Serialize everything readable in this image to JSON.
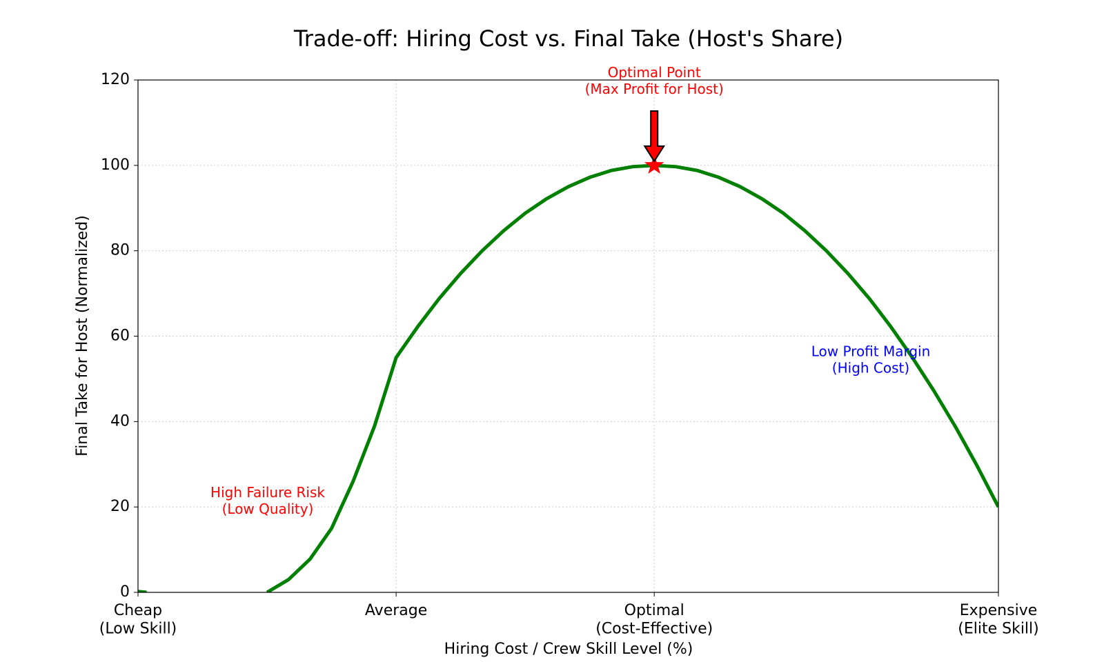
{
  "chart_data": {
    "type": "line",
    "title": "Trade-off: Hiring Cost vs. Final Take (Host's Share)",
    "x_label": "Hiring Cost / Crew Skill Level (%)",
    "y_label": "Final Take for Host (Normalized)",
    "xlim": [
      0,
      100
    ],
    "ylim": [
      0,
      120
    ],
    "xticks": [
      {
        "value": 0,
        "label": "Cheap\n(Low Skill)"
      },
      {
        "value": 30,
        "label": "Average"
      },
      {
        "value": 60,
        "label": "Optimal\n(Cost-Effective)"
      },
      {
        "value": 100,
        "label": "Expensive\n(Elite Skill)"
      }
    ],
    "yticks": [
      0,
      20,
      40,
      60,
      80,
      100,
      120
    ],
    "grid": true,
    "x": [
      0,
      1,
      2.5,
      5,
      7.5,
      10,
      12.5,
      15,
      17.5,
      20,
      22.5,
      25,
      27.5,
      30,
      32.5,
      35,
      37.5,
      40,
      42.5,
      45,
      47.5,
      50,
      52.5,
      55,
      57.5,
      60,
      62.5,
      65,
      67.5,
      70,
      72.5,
      75,
      77.5,
      80,
      82.5,
      85,
      87.5,
      90,
      92.5,
      95,
      97.5,
      100
    ],
    "series": [
      {
        "color": "#008000",
        "values": [
          0.2,
          0,
          null,
          null,
          null,
          null,
          null,
          0,
          3,
          7.8,
          15,
          26,
          39,
          55,
          62.2,
          68.8,
          74.7,
          80,
          84.7,
          88.8,
          92.2,
          95,
          97.2,
          98.8,
          99.7,
          100,
          99.7,
          98.8,
          97.2,
          95,
          92.2,
          88.8,
          84.7,
          80,
          74.7,
          68.8,
          62.2,
          55,
          47.2,
          38.8,
          29.7,
          20
        ]
      }
    ],
    "optimal_point": {
      "x": 60,
      "y": 100,
      "color": "#ff0000"
    },
    "annotations": [
      {
        "text": "Optimal Point\n(Max Profit for Host)",
        "color": "#ff0000"
      },
      {
        "text": "High Failure Risk\n(Low Quality)",
        "color": "#ff0000"
      },
      {
        "text": "Low Profit Margin\n(High Cost)",
        "color": "#0000ff"
      }
    ]
  }
}
